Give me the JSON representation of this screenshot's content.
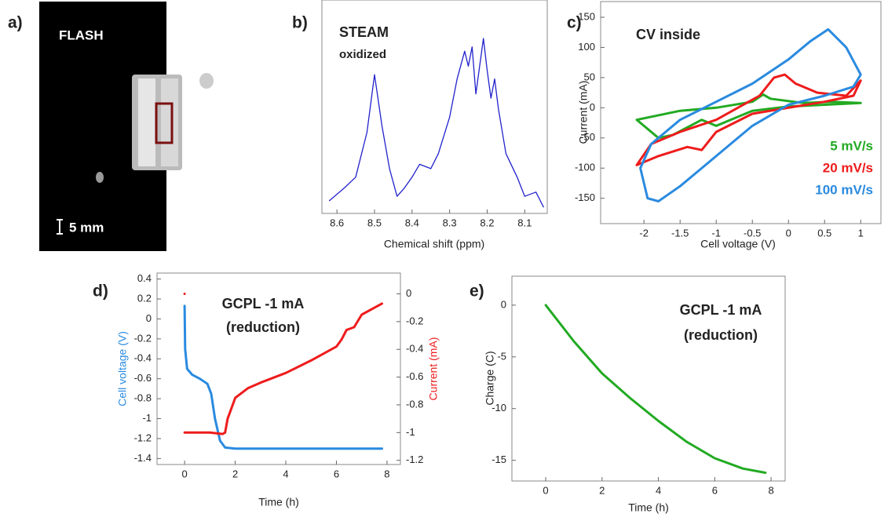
{
  "chart_data": [
    {
      "type": "image",
      "panel": "a)",
      "title": "FLASH",
      "scale_label": "5 mm"
    },
    {
      "type": "line",
      "panel": "b)",
      "title": "STEAM",
      "subtitle": "oxidized",
      "xlabel": "Chemical shift (ppm)",
      "xlim": [
        8.64,
        8.04
      ],
      "ylim": [
        0,
        1
      ],
      "xticks": [
        8.6,
        8.5,
        8.4,
        8.3,
        8.2,
        8.1
      ],
      "series": [
        {
          "color": "#2222cc",
          "x": [
            8.62,
            8.58,
            8.55,
            8.52,
            8.5,
            8.48,
            8.46,
            8.44,
            8.42,
            8.4,
            8.38,
            8.35,
            8.33,
            8.3,
            8.28,
            8.26,
            8.25,
            8.24,
            8.23,
            8.21,
            8.2,
            8.19,
            8.18,
            8.17,
            8.15,
            8.12,
            8.1,
            8.07,
            8.05
          ],
          "values": [
            0.06,
            0.12,
            0.17,
            0.38,
            0.65,
            0.41,
            0.21,
            0.08,
            0.12,
            0.17,
            0.23,
            0.21,
            0.28,
            0.45,
            0.63,
            0.76,
            0.69,
            0.78,
            0.56,
            0.82,
            0.67,
            0.54,
            0.63,
            0.49,
            0.28,
            0.17,
            0.08,
            0.1,
            0.03
          ]
        }
      ]
    },
    {
      "type": "line",
      "panel": "c)",
      "title": "CV inside",
      "xlabel": "Cell voltage (V)",
      "ylabel": "Current (mA)",
      "xlim": [
        -2.6,
        1.28
      ],
      "ylim": [
        -192,
        176
      ],
      "xticks": [
        -2,
        -1.5,
        -1,
        -0.5,
        0,
        0.5,
        1
      ],
      "yticks": [
        150,
        100,
        50,
        0,
        -50,
        -100,
        -150
      ],
      "legend": "lower right",
      "series": [
        {
          "name": "5 mV/s",
          "color": "#22aa22",
          "x": [
            1.0,
            0.6,
            0.2,
            -0.25,
            -0.35,
            -0.5,
            -1.0,
            -1.5,
            -2.1,
            -2.0,
            -1.8,
            -1.6,
            -1.2,
            -1.0,
            -0.5,
            0,
            0.5,
            1.0
          ],
          "values": [
            8,
            10,
            8,
            15,
            22,
            10,
            0,
            -5,
            -20,
            -30,
            -50,
            -45,
            -20,
            -30,
            -5,
            2,
            5,
            8
          ]
        },
        {
          "name": "20 mV/s",
          "color": "#ee1c1c",
          "x": [
            1.0,
            0.8,
            0.4,
            0.1,
            -0.05,
            -0.2,
            -0.4,
            -0.7,
            -1.0,
            -1.5,
            -1.9,
            -2.1,
            -1.8,
            -1.4,
            -1.2,
            -1.0,
            -0.5,
            0,
            0.5,
            0.9,
            1.0
          ],
          "values": [
            45,
            20,
            25,
            40,
            55,
            50,
            20,
            0,
            -20,
            -40,
            -60,
            -95,
            -80,
            -65,
            -70,
            -40,
            -10,
            0,
            10,
            20,
            45
          ]
        },
        {
          "name": "100 mV/s",
          "color": "#2a8ae0",
          "x": [
            1.0,
            0.8,
            0.55,
            0.3,
            0,
            -0.5,
            -1.0,
            -1.5,
            -1.9,
            -2.05,
            -1.95,
            -1.8,
            -1.5,
            -1.0,
            -0.5,
            0,
            0.5,
            0.9,
            1.0
          ],
          "values": [
            55,
            100,
            130,
            110,
            80,
            40,
            10,
            -20,
            -60,
            -100,
            -150,
            -155,
            -130,
            -80,
            -30,
            5,
            20,
            35,
            55
          ]
        }
      ]
    },
    {
      "type": "line",
      "panel": "d)",
      "annotation": [
        "GCPL -1 mA",
        "(reduction)"
      ],
      "xlabel": "Time (h)",
      "ylabel": "Cell voltage (V)",
      "y2label": "Current (mA)",
      "xlim": [
        -1.09,
        8.53
      ],
      "ylim": [
        -1.46,
        0.46
      ],
      "y2lim": [
        -1.23,
        0.15
      ],
      "xticks": [
        0,
        2,
        4,
        6,
        8
      ],
      "yticks": [
        0.4,
        0.2,
        0,
        -0.2,
        -0.4,
        -0.6,
        -0.8,
        -1,
        -1.2,
        -1.4
      ],
      "y2ticks": [
        0,
        -0.2,
        -0.4,
        -0.6,
        -0.8,
        -1,
        -1.2
      ],
      "series": [
        {
          "color": "#2a8ae0",
          "x": [
            0,
            0.02,
            0.1,
            0.3,
            0.6,
            0.9,
            1.05,
            1.2,
            1.4,
            1.6,
            2,
            4,
            6,
            7.8
          ],
          "values": [
            0.13,
            -0.3,
            -0.5,
            -0.56,
            -0.6,
            -0.65,
            -0.75,
            -1.0,
            -1.22,
            -1.29,
            -1.3,
            -1.3,
            -1.3,
            -1.3
          ]
        },
        {
          "color": "#ee1c1c",
          "axis": "y2",
          "x": [
            0,
            null,
            0,
            0.5,
            1.0,
            1.5,
            1.6,
            1.7,
            2.0,
            2.5,
            3,
            4,
            5,
            6,
            6.2,
            6.4,
            6.7,
            7,
            7.5,
            7.8
          ],
          "values": [
            0,
            null,
            -1.0,
            -1.0,
            -1.0,
            -1.01,
            -1.0,
            -0.9,
            -0.75,
            -0.68,
            -0.64,
            -0.57,
            -0.48,
            -0.38,
            -0.33,
            -0.26,
            -0.24,
            -0.15,
            -0.1,
            -0.07
          ]
        }
      ]
    },
    {
      "type": "line",
      "panel": "e)",
      "annotation": [
        "GCPL -1 mA",
        "(reduction)"
      ],
      "xlabel": "Time (h)",
      "ylabel": "Charge (C)",
      "xlim": [
        -1.2,
        8.5
      ],
      "ylim": [
        -17,
        2.8
      ],
      "xticks": [
        0,
        2,
        4,
        6,
        8
      ],
      "yticks": [
        0,
        -5,
        -10,
        -15
      ],
      "series": [
        {
          "color": "#22aa22",
          "x": [
            0,
            1,
            2,
            3,
            4,
            5,
            6,
            7,
            7.8
          ],
          "values": [
            0,
            -3.5,
            -6.6,
            -9,
            -11.2,
            -13.2,
            -14.8,
            -15.8,
            -16.2
          ]
        }
      ]
    }
  ]
}
